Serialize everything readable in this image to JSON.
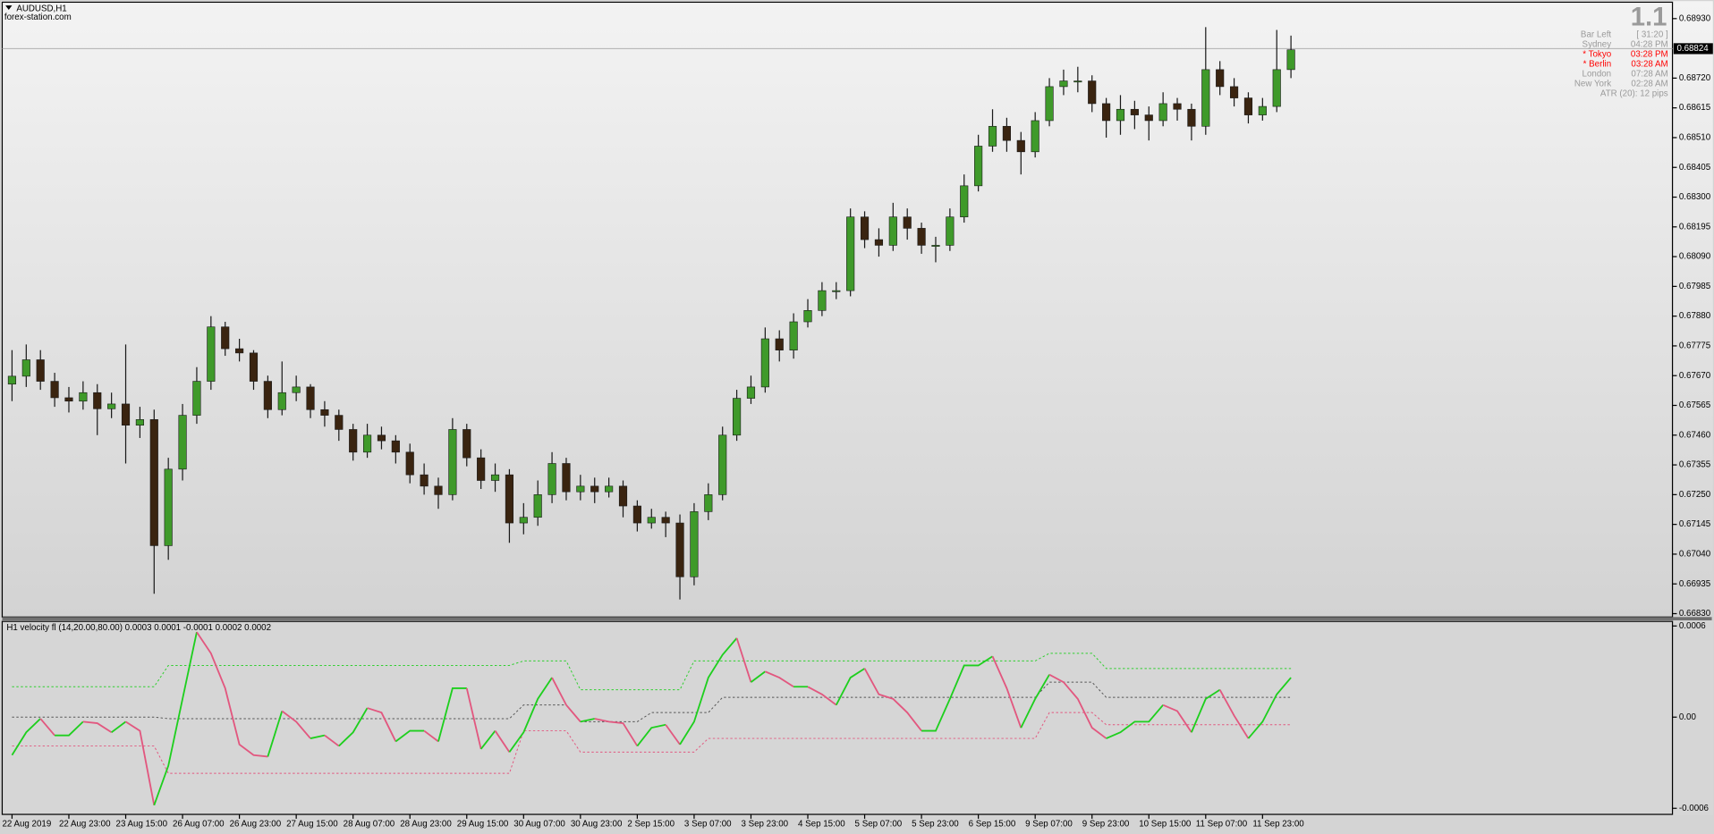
{
  "chart_data": [
    {
      "type": "candlestick",
      "title": "AUDUSD,H1",
      "subtitle": "forex-station.com",
      "categories": [
        "22 Aug 2019",
        null,
        null,
        null,
        "22 Aug 23:00",
        null,
        null,
        null,
        "23 Aug 15:00",
        null,
        null,
        null,
        "26 Aug 07:00",
        null,
        null,
        null,
        "26 Aug 23:00",
        null,
        null,
        null,
        "27 Aug 15:00",
        null,
        null,
        null,
        "28 Aug 07:00",
        null,
        null,
        null,
        "28 Aug 23:00",
        null,
        null,
        null,
        "29 Aug 15:00",
        null,
        null,
        null,
        "30 Aug 07:00",
        null,
        null,
        null,
        "30 Aug 23:00",
        null,
        null,
        null,
        "2 Sep 15:00",
        null,
        null,
        null,
        "3 Sep 07:00",
        null,
        null,
        null,
        "3 Sep 23:00",
        null,
        null,
        null,
        "4 Sep 15:00",
        null,
        null,
        null,
        "5 Sep 07:00",
        null,
        null,
        null,
        "5 Sep 23:00",
        null,
        null,
        null,
        "6 Sep 15:00",
        null,
        null,
        null,
        "9 Sep 07:00",
        null,
        null,
        null,
        "9 Sep 23:00",
        null,
        null,
        null,
        "10 Sep 15:00",
        null,
        null,
        null,
        "11 Sep 07:00",
        null,
        null,
        null,
        "11 Sep 23:00",
        null,
        null
      ],
      "open": [
        0.6764,
        0.67668,
        0.67726,
        0.6765,
        0.67592,
        0.6758,
        0.6761,
        0.67553,
        0.6757,
        0.67495,
        0.67515,
        0.6707,
        0.6734,
        0.6753,
        0.6765,
        0.67842,
        0.67765,
        0.6775,
        0.6765,
        0.6755,
        0.6761,
        0.6763,
        0.6755,
        0.6753,
        0.6748,
        0.674,
        0.6746,
        0.6744,
        0.674,
        0.6732,
        0.6728,
        0.6725,
        0.6748,
        0.6738,
        0.673,
        0.6732,
        0.6715,
        0.6717,
        0.6725,
        0.6736,
        0.6726,
        0.6728,
        0.6726,
        0.6728,
        0.6721,
        0.6715,
        0.6717,
        0.6715,
        0.6696,
        0.6719,
        0.6725,
        0.6746,
        0.6759,
        0.6763,
        0.678,
        0.6776,
        0.6786,
        0.679,
        0.6797,
        0.6797,
        0.6823,
        0.6815,
        0.6813,
        0.6823,
        0.6819,
        0.6813,
        0.6813,
        0.6823,
        0.6834,
        0.6848,
        0.6855,
        0.685,
        0.6846,
        0.6857,
        0.6869,
        0.6871,
        0.6871,
        0.6863,
        0.6857,
        0.6861,
        0.6859,
        0.6857,
        0.6863,
        0.6861,
        0.6855,
        0.6875,
        0.6869,
        0.6865,
        0.6859,
        0.6862,
        0.6875
      ],
      "high": [
        0.6776,
        0.6778,
        0.6776,
        0.6768,
        0.6763,
        0.6765,
        0.6764,
        0.6761,
        0.6778,
        0.6756,
        0.6755,
        0.6738,
        0.6757,
        0.677,
        0.6788,
        0.6786,
        0.678,
        0.6776,
        0.6767,
        0.6772,
        0.6767,
        0.6764,
        0.6758,
        0.6755,
        0.675,
        0.675,
        0.6749,
        0.6746,
        0.6743,
        0.6736,
        0.6731,
        0.6752,
        0.675,
        0.6741,
        0.6736,
        0.6734,
        0.6722,
        0.673,
        0.674,
        0.6738,
        0.6732,
        0.6731,
        0.6731,
        0.673,
        0.6723,
        0.672,
        0.6719,
        0.6718,
        0.6722,
        0.6729,
        0.6749,
        0.6762,
        0.6767,
        0.6784,
        0.6783,
        0.6789,
        0.6794,
        0.68,
        0.68,
        0.6826,
        0.6825,
        0.6819,
        0.6828,
        0.6826,
        0.6821,
        0.6816,
        0.6826,
        0.6838,
        0.6852,
        0.6861,
        0.6858,
        0.6853,
        0.686,
        0.6872,
        0.6875,
        0.6876,
        0.6873,
        0.6865,
        0.6866,
        0.6864,
        0.6862,
        0.6867,
        0.6865,
        0.6863,
        0.689,
        0.6878,
        0.6872,
        0.6867,
        0.6865,
        0.6889,
        0.6887
      ],
      "low": [
        0.6758,
        0.6763,
        0.6762,
        0.6756,
        0.6754,
        0.6755,
        0.6746,
        0.6752,
        0.6736,
        0.6745,
        0.669,
        0.6702,
        0.673,
        0.675,
        0.6762,
        0.6774,
        0.6772,
        0.6762,
        0.6752,
        0.6753,
        0.6758,
        0.6752,
        0.6749,
        0.6744,
        0.6737,
        0.6738,
        0.6741,
        0.6736,
        0.6729,
        0.6725,
        0.672,
        0.6723,
        0.6735,
        0.6727,
        0.6726,
        0.6708,
        0.6711,
        0.6714,
        0.6722,
        0.6723,
        0.6723,
        0.6722,
        0.6724,
        0.6717,
        0.6712,
        0.6713,
        0.671,
        0.6688,
        0.6693,
        0.6716,
        0.6723,
        0.6744,
        0.6757,
        0.6761,
        0.6772,
        0.6773,
        0.6784,
        0.6788,
        0.6794,
        0.6795,
        0.6812,
        0.6809,
        0.6811,
        0.6815,
        0.681,
        0.6807,
        0.6811,
        0.6821,
        0.6832,
        0.6846,
        0.6846,
        0.6838,
        0.6844,
        0.6855,
        0.6866,
        0.6867,
        0.686,
        0.6851,
        0.6852,
        0.6854,
        0.685,
        0.6855,
        0.6857,
        0.685,
        0.6852,
        0.6866,
        0.6862,
        0.6856,
        0.6857,
        0.686,
        0.6872
      ],
      "close": [
        0.67668,
        0.67726,
        0.6765,
        0.67592,
        0.6758,
        0.6761,
        0.67553,
        0.6757,
        0.67495,
        0.67515,
        0.6707,
        0.6734,
        0.6753,
        0.6765,
        0.67842,
        0.67765,
        0.6775,
        0.6765,
        0.6755,
        0.6761,
        0.6763,
        0.6755,
        0.6753,
        0.6748,
        0.674,
        0.6746,
        0.6744,
        0.674,
        0.6732,
        0.6728,
        0.6725,
        0.6748,
        0.6738,
        0.673,
        0.6732,
        0.6715,
        0.6717,
        0.6725,
        0.6736,
        0.6726,
        0.6728,
        0.6726,
        0.6728,
        0.6721,
        0.6715,
        0.6717,
        0.6715,
        0.6696,
        0.6719,
        0.6725,
        0.6746,
        0.6759,
        0.6763,
        0.678,
        0.6776,
        0.6786,
        0.679,
        0.6797,
        0.6797,
        0.6823,
        0.6815,
        0.6813,
        0.6823,
        0.6819,
        0.6813,
        0.6813,
        0.6823,
        0.6834,
        0.6848,
        0.6855,
        0.685,
        0.6846,
        0.6857,
        0.6869,
        0.6871,
        0.6871,
        0.6863,
        0.6857,
        0.6861,
        0.6859,
        0.6857,
        0.6863,
        0.6861,
        0.6855,
        0.6875,
        0.6869,
        0.6865,
        0.6859,
        0.6862,
        0.6875,
        0.6882
      ],
      "up_color": "#3f9a2a",
      "down_color": "#3a2410",
      "wick_color": "#1a1a1a",
      "last_price": 0.68824,
      "ylim": [
        0.66818,
        0.68988
      ],
      "yticks": [
        {
          "value": 0.6893,
          "label": "0.68930"
        },
        {
          "value": 0.6872,
          "label": "0.68720"
        },
        {
          "value": 0.68615,
          "label": "0.68615"
        },
        {
          "value": 0.6851,
          "label": "0.68510"
        },
        {
          "value": 0.68405,
          "label": "0.68405"
        },
        {
          "value": 0.683,
          "label": "0.68300"
        },
        {
          "value": 0.68195,
          "label": "0.68195"
        },
        {
          "value": 0.6809,
          "label": "0.68090"
        },
        {
          "value": 0.67985,
          "label": "0.67985"
        },
        {
          "value": 0.6788,
          "label": "0.67880"
        },
        {
          "value": 0.67775,
          "label": "0.67775"
        },
        {
          "value": 0.6767,
          "label": "0.67670"
        },
        {
          "value": 0.67565,
          "label": "0.67565"
        },
        {
          "value": 0.6746,
          "label": "0.67460"
        },
        {
          "value": 0.67355,
          "label": "0.67355"
        },
        {
          "value": 0.6725,
          "label": "0.67250"
        },
        {
          "value": 0.67145,
          "label": "0.67145"
        },
        {
          "value": 0.6704,
          "label": "0.67040"
        },
        {
          "value": 0.66935,
          "label": "0.66935"
        },
        {
          "value": 0.6683,
          "label": "0.66830"
        }
      ],
      "panel": {
        "big": "1.1",
        "rows": [
          {
            "label": "Bar Left",
            "value": "[ 31:20 ]",
            "color": "#9a9a9a"
          },
          {
            "label": "Sydney",
            "value": "04:28 PM",
            "color": "#9a9a9a"
          },
          {
            "label": "* Tokyo",
            "value": "03:28 PM",
            "color": "#ff0000"
          },
          {
            "label": "* Berlin",
            "value": "03:28 AM",
            "color": "#ff0000"
          },
          {
            "label": "London",
            "value": "07:28 AM",
            "color": "#9a9a9a"
          },
          {
            "label": "New York",
            "value": "02:28 AM",
            "color": "#9a9a9a"
          }
        ],
        "atr": "ATR (20): 12 pips"
      }
    },
    {
      "type": "line",
      "title": "H1 velocity fl (14,20.00,80.00) 0.0003 0.0001 -0.0001 0.0002 0.0002",
      "up_color": "#1ecf1e",
      "down_color": "#e2577f",
      "velocity": [
        -0.00025,
        -0.0001,
        -1e-05,
        -0.00012,
        -0.00012,
        -3e-05,
        -4e-05,
        -0.0001,
        -3e-05,
        -9e-05,
        -0.00058,
        -0.00032,
        0.00012,
        0.00056,
        0.00042,
        0.00019,
        -0.00018,
        -0.00025,
        -0.00026,
        4e-05,
        -3e-05,
        -0.00014,
        -0.00012,
        -0.00019,
        -0.0001,
        6e-05,
        3e-05,
        -0.00016,
        -9e-05,
        -9e-05,
        -0.00016,
        0.00019,
        0.00019,
        -0.00021,
        -9e-05,
        -0.00023,
        -0.0001,
        0.00012,
        0.00026,
        8e-05,
        -3e-05,
        -1e-05,
        -3e-05,
        -4e-05,
        -0.00019,
        -7e-05,
        -5e-05,
        -0.00018,
        -3e-05,
        0.00026,
        0.00041,
        0.00052,
        0.00023,
        0.0003,
        0.00026,
        0.0002,
        0.0002,
        0.00015,
        8e-05,
        0.00026,
        0.00032,
        0.00015,
        0.00012,
        3e-05,
        -9e-05,
        -9e-05,
        0.00012,
        0.00034,
        0.00034,
        0.0004,
        0.00019,
        -7e-05,
        0.00012,
        0.00028,
        0.00023,
        0.00012,
        -7e-05,
        -0.00014,
        -0.0001,
        -3e-05,
        -3e-05,
        8e-05,
        4e-05,
        -0.0001,
        0.00012,
        0.00018,
        1e-05,
        -0.00014,
        -3e-05,
        0.00015,
        0.00026
      ],
      "bands": [
        {
          "color": "#2fcf2f",
          "values": [
            0.0002,
            0.0002,
            0.0002,
            0.0002,
            0.0002,
            0.0002,
            0.0002,
            0.0002,
            0.0002,
            0.0002,
            0.0002,
            0.00034,
            0.00034,
            0.00034,
            0.00034,
            0.00034,
            0.00034,
            0.00034,
            0.00034,
            0.00034,
            0.00034,
            0.00034,
            0.00034,
            0.00034,
            0.00034,
            0.00034,
            0.00034,
            0.00034,
            0.00034,
            0.00034,
            0.00034,
            0.00034,
            0.00034,
            0.00034,
            0.00034,
            0.00034,
            0.00037,
            0.00037,
            0.00037,
            0.00037,
            0.00018,
            0.00018,
            0.00018,
            0.00018,
            0.00018,
            0.00018,
            0.00018,
            0.00018,
            0.00037,
            0.00037,
            0.00037,
            0.00037,
            0.00037,
            0.00037,
            0.00037,
            0.00037,
            0.00037,
            0.00037,
            0.00037,
            0.00037,
            0.00037,
            0.00037,
            0.00037,
            0.00037,
            0.00037,
            0.00037,
            0.00037,
            0.00037,
            0.00037,
            0.00037,
            0.00037,
            0.00037,
            0.00037,
            0.00042,
            0.00042,
            0.00042,
            0.00042,
            0.00032,
            0.00032,
            0.00032,
            0.00032,
            0.00032,
            0.00032,
            0.00032,
            0.00032,
            0.00032,
            0.00032,
            0.00032,
            0.00032,
            0.00032,
            0.00032
          ]
        },
        {
          "color": "#555555",
          "values": [
            0,
            0,
            0,
            0,
            0,
            0,
            0,
            0,
            0,
            0,
            0,
            -1e-05,
            -1e-05,
            -1e-05,
            -1e-05,
            -1e-05,
            -1e-05,
            -1e-05,
            -1e-05,
            -1e-05,
            -1e-05,
            -1e-05,
            -1e-05,
            -1e-05,
            -1e-05,
            -1e-05,
            -1e-05,
            -1e-05,
            -1e-05,
            -1e-05,
            -1e-05,
            -1e-05,
            -1e-05,
            -1e-05,
            -1e-05,
            -1e-05,
            8e-05,
            8e-05,
            8e-05,
            8e-05,
            -3e-05,
            -3e-05,
            -3e-05,
            -3e-05,
            -3e-05,
            3e-05,
            3e-05,
            3e-05,
            3e-05,
            3e-05,
            0.00013,
            0.00013,
            0.00013,
            0.00013,
            0.00013,
            0.00013,
            0.00013,
            0.00013,
            0.00013,
            0.00013,
            0.00013,
            0.00013,
            0.00013,
            0.00013,
            0.00013,
            0.00013,
            0.00013,
            0.00013,
            0.00013,
            0.00013,
            0.00013,
            0.00013,
            0.00013,
            0.00023,
            0.00023,
            0.00023,
            0.00023,
            0.00013,
            0.00013,
            0.00013,
            0.00013,
            0.00013,
            0.00013,
            0.00013,
            0.00013,
            0.00013,
            0.00013,
            0.00013,
            0.00013,
            0.00013,
            0.00013
          ]
        },
        {
          "color": "#e2577f",
          "values": [
            -0.00019,
            -0.00019,
            -0.00019,
            -0.00019,
            -0.00019,
            -0.00019,
            -0.00019,
            -0.00019,
            -0.00019,
            -0.00019,
            -0.00019,
            -0.00037,
            -0.00037,
            -0.00037,
            -0.00037,
            -0.00037,
            -0.00037,
            -0.00037,
            -0.00037,
            -0.00037,
            -0.00037,
            -0.00037,
            -0.00037,
            -0.00037,
            -0.00037,
            -0.00037,
            -0.00037,
            -0.00037,
            -0.00037,
            -0.00037,
            -0.00037,
            -0.00037,
            -0.00037,
            -0.00037,
            -0.00037,
            -0.00037,
            -9e-05,
            -9e-05,
            -9e-05,
            -9e-05,
            -0.00023,
            -0.00023,
            -0.00023,
            -0.00023,
            -0.00023,
            -0.00023,
            -0.00023,
            -0.00023,
            -0.00023,
            -0.00014,
            -0.00014,
            -0.00014,
            -0.00014,
            -0.00014,
            -0.00014,
            -0.00014,
            -0.00014,
            -0.00014,
            -0.00014,
            -0.00014,
            -0.00014,
            -0.00014,
            -0.00014,
            -0.00014,
            -0.00014,
            -0.00014,
            -0.00014,
            -0.00014,
            -0.00014,
            -0.00014,
            -0.00014,
            -0.00014,
            -0.00014,
            3e-05,
            3e-05,
            3e-05,
            3e-05,
            -5e-05,
            -5e-05,
            -5e-05,
            -5e-05,
            -5e-05,
            -5e-05,
            -5e-05,
            -5e-05,
            -5e-05,
            -5e-05,
            -5e-05,
            -5e-05,
            -5e-05,
            -5e-05
          ]
        }
      ],
      "ylim": [
        -0.00064,
        0.00063
      ],
      "yticks": [
        0.0006,
        {
          "value": 0,
          "label": "0.00"
        },
        -0.0006
      ]
    }
  ]
}
